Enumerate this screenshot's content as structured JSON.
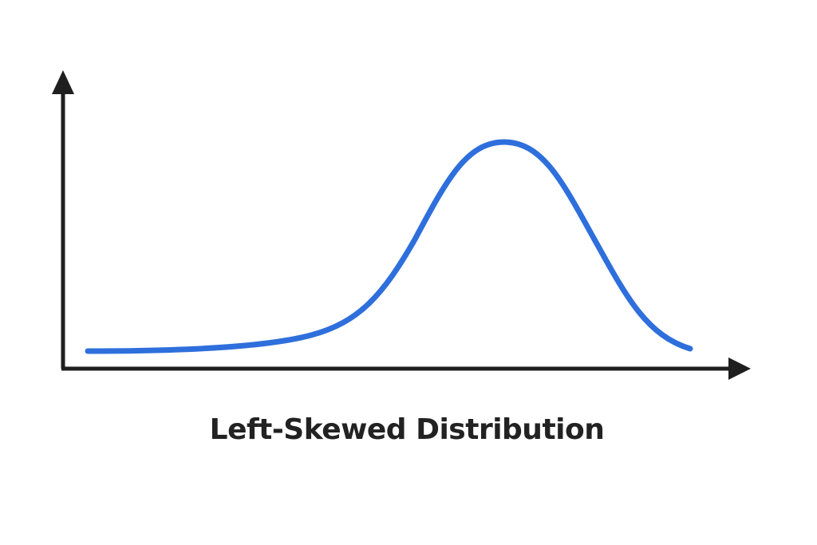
{
  "title": "Left-Skewed Distribution",
  "colors": {
    "curve": "#2e6fdc",
    "axes": "#1f1f1f",
    "title": "#222222"
  }
}
